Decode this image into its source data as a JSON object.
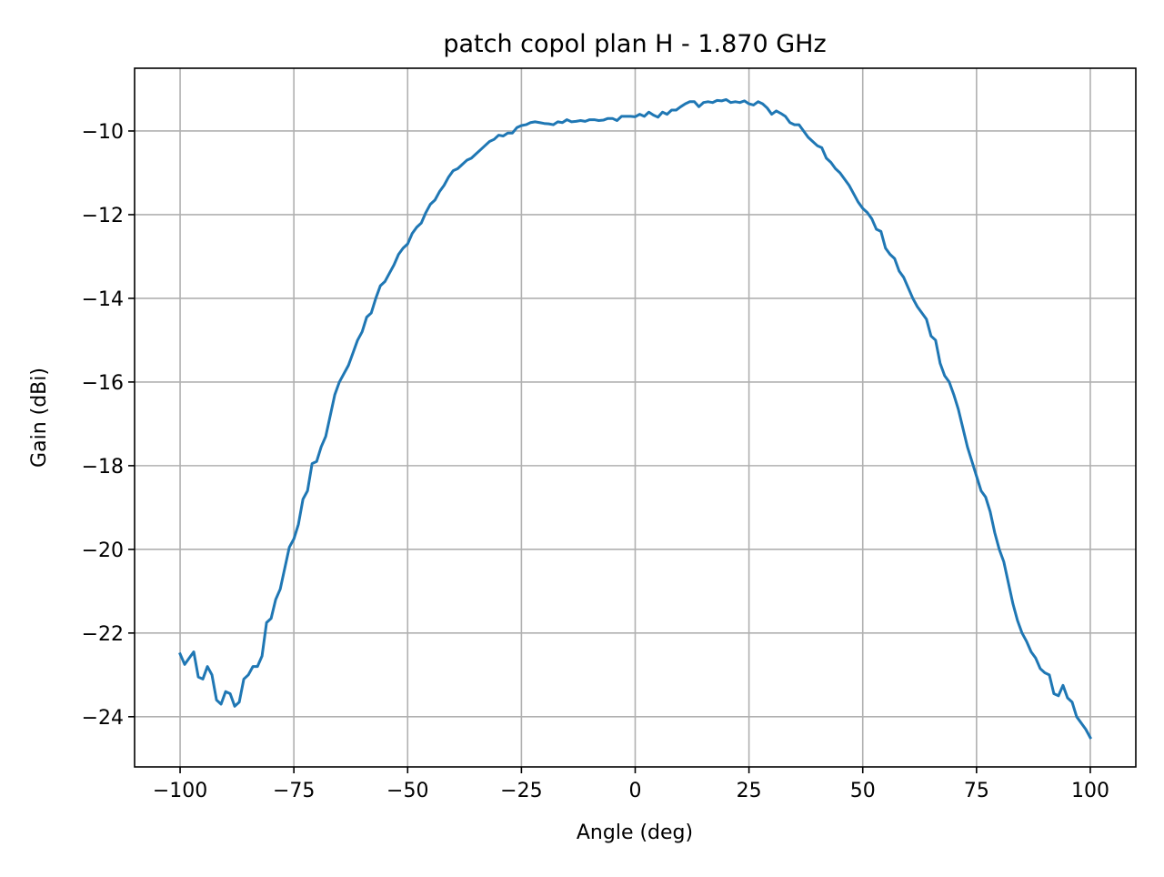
{
  "chart_data": {
    "type": "line",
    "title": "patch copol plan H - 1.870 GHz",
    "xlabel": "Angle (deg)",
    "ylabel": "Gain (dBi)",
    "xlim": [
      -110,
      110
    ],
    "ylim": [
      -25.2,
      -8.5
    ],
    "xticks": [
      -100,
      -75,
      -50,
      -25,
      0,
      25,
      50,
      75,
      100
    ],
    "xtick_labels": [
      "−100",
      "−75",
      "−50",
      "−25",
      "0",
      "25",
      "50",
      "75",
      "100"
    ],
    "yticks": [
      -10,
      -12,
      -14,
      -16,
      -18,
      -20,
      -22,
      -24
    ],
    "ytick_labels": [
      "−10",
      "−12",
      "−14",
      "−16",
      "−18",
      "−20",
      "−22",
      "−24"
    ],
    "grid": true,
    "series": [
      {
        "color": "#1f77b4",
        "points": [
          [
            -100,
            -22.5
          ],
          [
            -99,
            -22.75
          ],
          [
            -98,
            -22.6
          ],
          [
            -97,
            -22.45
          ],
          [
            -96,
            -23.05
          ],
          [
            -95,
            -23.1
          ],
          [
            -94,
            -22.8
          ],
          [
            -93,
            -23.0
          ],
          [
            -92,
            -23.6
          ],
          [
            -91,
            -23.7
          ],
          [
            -90,
            -23.4
          ],
          [
            -89,
            -23.45
          ],
          [
            -88,
            -23.75
          ],
          [
            -87,
            -23.65
          ],
          [
            -86,
            -23.1
          ],
          [
            -85,
            -23.0
          ],
          [
            -84,
            -22.8
          ],
          [
            -83,
            -22.8
          ],
          [
            -82,
            -22.55
          ],
          [
            -81,
            -21.75
          ],
          [
            -80,
            -21.65
          ],
          [
            -79,
            -21.2
          ],
          [
            -78,
            -20.95
          ],
          [
            -77,
            -20.45
          ],
          [
            -76,
            -19.95
          ],
          [
            -75,
            -19.75
          ],
          [
            -74,
            -19.4
          ],
          [
            -73,
            -18.8
          ],
          [
            -72,
            -18.6
          ],
          [
            -71,
            -17.95
          ],
          [
            -70,
            -17.9
          ],
          [
            -69,
            -17.55
          ],
          [
            -68,
            -17.3
          ],
          [
            -67,
            -16.8
          ],
          [
            -66,
            -16.3
          ],
          [
            -65,
            -16.0
          ],
          [
            -64,
            -15.8
          ],
          [
            -63,
            -15.6
          ],
          [
            -62,
            -15.3
          ],
          [
            -61,
            -15.0
          ],
          [
            -60,
            -14.8
          ],
          [
            -59,
            -14.45
          ],
          [
            -58,
            -14.35
          ],
          [
            -57,
            -14.0
          ],
          [
            -56,
            -13.7
          ],
          [
            -55,
            -13.6
          ],
          [
            -54,
            -13.4
          ],
          [
            -53,
            -13.2
          ],
          [
            -52,
            -12.95
          ],
          [
            -51,
            -12.8
          ],
          [
            -50,
            -12.7
          ],
          [
            -49,
            -12.45
          ],
          [
            -48,
            -12.3
          ],
          [
            -47,
            -12.2
          ],
          [
            -46,
            -11.95
          ],
          [
            -45,
            -11.75
          ],
          [
            -44,
            -11.65
          ],
          [
            -43,
            -11.45
          ],
          [
            -42,
            -11.3
          ],
          [
            -41,
            -11.1
          ],
          [
            -40,
            -10.95
          ],
          [
            -39,
            -10.9
          ],
          [
            -38,
            -10.8
          ],
          [
            -37,
            -10.7
          ],
          [
            -36,
            -10.65
          ],
          [
            -35,
            -10.55
          ],
          [
            -34,
            -10.45
          ],
          [
            -33,
            -10.35
          ],
          [
            -32,
            -10.25
          ],
          [
            -31,
            -10.2
          ],
          [
            -30,
            -10.1
          ],
          [
            -29,
            -10.12
          ],
          [
            -28,
            -10.05
          ],
          [
            -27,
            -10.05
          ],
          [
            -26,
            -9.92
          ],
          [
            -25,
            -9.87
          ],
          [
            -24,
            -9.85
          ],
          [
            -23,
            -9.8
          ],
          [
            -22,
            -9.78
          ],
          [
            -21,
            -9.8
          ],
          [
            -20,
            -9.82
          ],
          [
            -19,
            -9.83
          ],
          [
            -18,
            -9.85
          ],
          [
            -17,
            -9.78
          ],
          [
            -16,
            -9.8
          ],
          [
            -15,
            -9.73
          ],
          [
            -14,
            -9.78
          ],
          [
            -13,
            -9.77
          ],
          [
            -12,
            -9.75
          ],
          [
            -11,
            -9.77
          ],
          [
            -10,
            -9.73
          ],
          [
            -9,
            -9.73
          ],
          [
            -8,
            -9.75
          ],
          [
            -7,
            -9.74
          ],
          [
            -6,
            -9.7
          ],
          [
            -5,
            -9.7
          ],
          [
            -4,
            -9.75
          ],
          [
            -3,
            -9.65
          ],
          [
            -2,
            -9.65
          ],
          [
            -1,
            -9.65
          ],
          [
            0,
            -9.66
          ],
          [
            1,
            -9.6
          ],
          [
            2,
            -9.65
          ],
          [
            3,
            -9.55
          ],
          [
            4,
            -9.62
          ],
          [
            5,
            -9.67
          ],
          [
            6,
            -9.55
          ],
          [
            7,
            -9.6
          ],
          [
            8,
            -9.5
          ],
          [
            9,
            -9.5
          ],
          [
            10,
            -9.42
          ],
          [
            11,
            -9.35
          ],
          [
            12,
            -9.3
          ],
          [
            13,
            -9.3
          ],
          [
            14,
            -9.42
          ],
          [
            15,
            -9.32
          ],
          [
            16,
            -9.3
          ],
          [
            17,
            -9.32
          ],
          [
            18,
            -9.27
          ],
          [
            19,
            -9.28
          ],
          [
            20,
            -9.25
          ],
          [
            21,
            -9.32
          ],
          [
            22,
            -9.3
          ],
          [
            23,
            -9.32
          ],
          [
            24,
            -9.28
          ],
          [
            25,
            -9.35
          ],
          [
            26,
            -9.38
          ],
          [
            27,
            -9.3
          ],
          [
            28,
            -9.35
          ],
          [
            29,
            -9.45
          ],
          [
            30,
            -9.6
          ],
          [
            31,
            -9.52
          ],
          [
            32,
            -9.58
          ],
          [
            33,
            -9.65
          ],
          [
            34,
            -9.8
          ],
          [
            35,
            -9.85
          ],
          [
            36,
            -9.85
          ],
          [
            37,
            -10.0
          ],
          [
            38,
            -10.15
          ],
          [
            39,
            -10.25
          ],
          [
            40,
            -10.35
          ],
          [
            41,
            -10.4
          ],
          [
            42,
            -10.65
          ],
          [
            43,
            -10.75
          ],
          [
            44,
            -10.9
          ],
          [
            45,
            -11.0
          ],
          [
            46,
            -11.15
          ],
          [
            47,
            -11.3
          ],
          [
            48,
            -11.5
          ],
          [
            49,
            -11.7
          ],
          [
            50,
            -11.85
          ],
          [
            51,
            -11.95
          ],
          [
            52,
            -12.1
          ],
          [
            53,
            -12.35
          ],
          [
            54,
            -12.4
          ],
          [
            55,
            -12.8
          ],
          [
            56,
            -12.95
          ],
          [
            57,
            -13.05
          ],
          [
            58,
            -13.35
          ],
          [
            59,
            -13.5
          ],
          [
            60,
            -13.75
          ],
          [
            61,
            -14.0
          ],
          [
            62,
            -14.2
          ],
          [
            63,
            -14.35
          ],
          [
            64,
            -14.5
          ],
          [
            65,
            -14.9
          ],
          [
            66,
            -15.0
          ],
          [
            67,
            -15.55
          ],
          [
            68,
            -15.85
          ],
          [
            69,
            -16.0
          ],
          [
            70,
            -16.3
          ],
          [
            71,
            -16.65
          ],
          [
            72,
            -17.1
          ],
          [
            73,
            -17.55
          ],
          [
            74,
            -17.9
          ],
          [
            75,
            -18.25
          ],
          [
            76,
            -18.6
          ],
          [
            77,
            -18.75
          ],
          [
            78,
            -19.1
          ],
          [
            79,
            -19.6
          ],
          [
            80,
            -20.0
          ],
          [
            81,
            -20.3
          ],
          [
            82,
            -20.8
          ],
          [
            83,
            -21.3
          ],
          [
            84,
            -21.7
          ],
          [
            85,
            -22.0
          ],
          [
            86,
            -22.2
          ],
          [
            87,
            -22.45
          ],
          [
            88,
            -22.6
          ],
          [
            89,
            -22.85
          ],
          [
            90,
            -22.95
          ],
          [
            91,
            -23.0
          ],
          [
            92,
            -23.45
          ],
          [
            93,
            -23.5
          ],
          [
            94,
            -23.25
          ],
          [
            95,
            -23.55
          ],
          [
            96,
            -23.65
          ],
          [
            97,
            -24.0
          ],
          [
            98,
            -24.15
          ],
          [
            99,
            -24.3
          ],
          [
            100,
            -24.5
          ]
        ]
      }
    ]
  }
}
